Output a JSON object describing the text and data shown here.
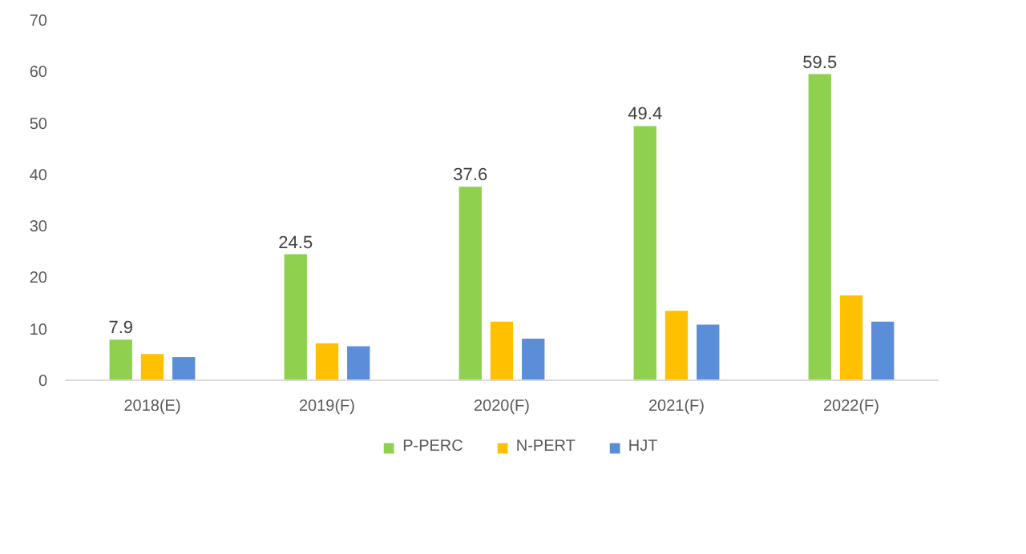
{
  "chart_data": {
    "type": "bar",
    "categories": [
      "2018(E)",
      "2019(F)",
      "2020(F)",
      "2021(F)",
      "2022(F)"
    ],
    "series": [
      {
        "name": "P-PERC",
        "color": "#8fd14f",
        "values": [
          7.9,
          24.5,
          37.6,
          49.4,
          59.5
        ],
        "value_labels": [
          "7.9",
          "24.5",
          "37.6",
          "49.4",
          "59.5"
        ]
      },
      {
        "name": "N-PERT",
        "color": "#ffc000",
        "values": [
          5.1,
          7.2,
          11.4,
          13.5,
          16.5
        ]
      },
      {
        "name": "HJT",
        "color": "#5b8ed8",
        "values": [
          4.5,
          6.6,
          8.1,
          10.8,
          11.4
        ]
      }
    ],
    "ylim": [
      0,
      70
    ],
    "yticks": [
      0,
      10,
      20,
      30,
      40,
      50,
      60,
      70
    ],
    "grid": false,
    "legend": "bottom"
  }
}
